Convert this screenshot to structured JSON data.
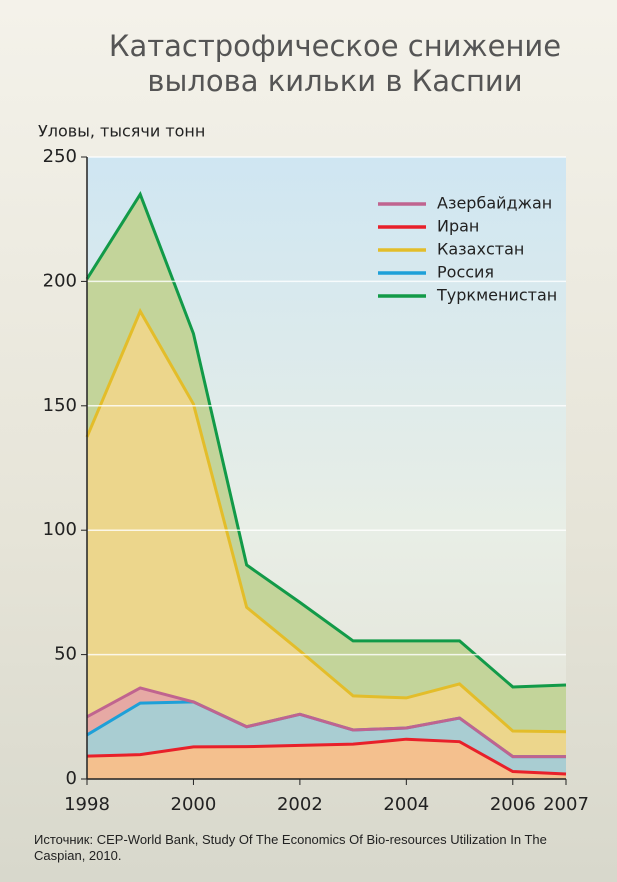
{
  "chart_data": {
    "type": "stacked_area",
    "title": [
      "Катастрофическое снижение",
      "вылова кильки в Каспии"
    ],
    "y_label": "Уловы, тысячи тонн",
    "source": "Источник: CEP-World Bank, Study Of The Economics Of Bio-resources Utilization In The Caspian, 2010.",
    "x": [
      1998,
      1999,
      2000,
      2001,
      2002,
      2003,
      2004,
      2005,
      2006,
      2007
    ],
    "xlim": [
      1998,
      2007
    ],
    "xticks": [
      1998,
      2000,
      2002,
      2004,
      2006,
      2007
    ],
    "ylim": [
      0,
      250
    ],
    "yticks": [
      0,
      50,
      100,
      150,
      200,
      250
    ],
    "grid": true,
    "legend": "upper right",
    "series": [
      {
        "name": "Иран",
        "color": "#e8202a",
        "fill": "#f4c08e",
        "values": [
          9.2,
          9.8,
          12.9,
          13,
          13.5,
          14,
          16,
          15,
          3,
          2
        ]
      },
      {
        "name": "Россия",
        "color": "#1ea0d8",
        "fill": "#a9cdd2",
        "values": [
          8.5,
          20.7,
          18.1,
          8,
          12.5,
          5.7,
          4.5,
          9.5,
          6,
          7
        ]
      },
      {
        "name": "Азербайджан",
        "color": "#c0648f",
        "fill": "#e6a9a4",
        "values": [
          7.3,
          6.1,
          0,
          0,
          0,
          0,
          0,
          0,
          0,
          0
        ]
      },
      {
        "name": "Казахстан",
        "color": "#e3bd2a",
        "fill": "#ecd68c",
        "values": [
          112.5,
          151.4,
          119.7,
          48,
          25.5,
          13.7,
          12.1,
          13.7,
          10.3,
          10
        ]
      },
      {
        "name": "Туркменистан",
        "color": "#129a48",
        "fill": "#c3d49a",
        "values": [
          63.5,
          47,
          28.3,
          17,
          19.5,
          22.1,
          22.9,
          17.3,
          17.7,
          18.8
        ]
      }
    ]
  }
}
